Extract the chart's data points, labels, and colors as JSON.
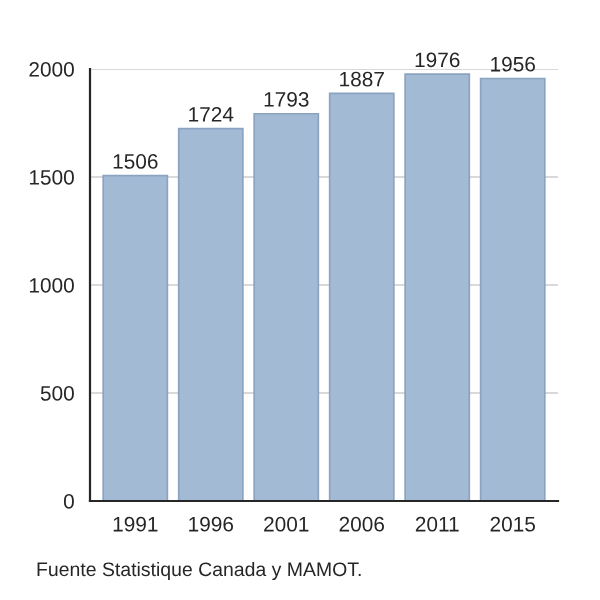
{
  "chart_data": {
    "type": "bar",
    "categories": [
      "1991",
      "1996",
      "2001",
      "2006",
      "2011",
      "2015"
    ],
    "values": [
      1506,
      1724,
      1793,
      1887,
      1976,
      1956
    ],
    "color": "#a3bad4",
    "ylim": [
      0,
      2000
    ],
    "yticks": [
      0,
      500,
      1000,
      1500,
      2000
    ],
    "grid": "y",
    "data_labels": true,
    "annotations": [
      "Fuente Statistique Canada y MAMOT."
    ]
  }
}
